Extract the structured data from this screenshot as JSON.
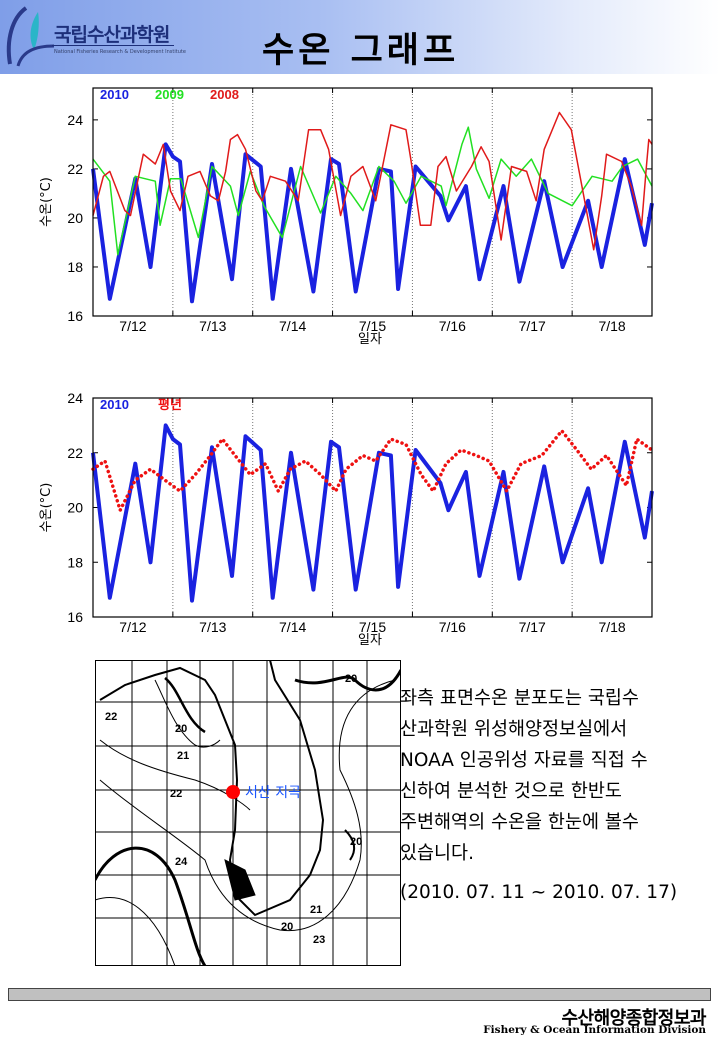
{
  "header": {
    "logo_ko": "국립수산과학원",
    "logo_en": "National Fisheries Research & Development Institute",
    "title": "수온 그래프"
  },
  "colors": {
    "y2010": "#1a22e0",
    "y2009": "#22e022",
    "y2008": "#e01a1a",
    "normal": "#ee1111",
    "station": "#ff0000",
    "station_label": "#1a55ff"
  },
  "chart_data": [
    {
      "type": "line",
      "title": "",
      "xlabel": "일자",
      "ylabel": "수온(°C)",
      "ylim": [
        16,
        25.3
      ],
      "xlim": [
        12,
        19
      ],
      "yticks": [
        16,
        18,
        20,
        22,
        24
      ],
      "xtick_labels": [
        "7/12",
        "7/13",
        "7/14",
        "7/15",
        "7/16",
        "7/17",
        "7/18"
      ],
      "legend": "top-left",
      "series": [
        {
          "name": "2010",
          "color_key": "y2010",
          "style": "thick",
          "points": [
            [
              12.0,
              22.0
            ],
            [
              12.21,
              16.7
            ],
            [
              12.53,
              21.6
            ],
            [
              12.72,
              18.0
            ],
            [
              12.91,
              23.0
            ],
            [
              13.0,
              22.5
            ],
            [
              13.09,
              22.3
            ],
            [
              13.24,
              16.6
            ],
            [
              13.49,
              22.2
            ],
            [
              13.74,
              17.5
            ],
            [
              13.91,
              22.6
            ],
            [
              14.1,
              22.1
            ],
            [
              14.25,
              16.7
            ],
            [
              14.48,
              22.0
            ],
            [
              14.76,
              17.0
            ],
            [
              14.98,
              22.4
            ],
            [
              15.08,
              22.2
            ],
            [
              15.29,
              17.0
            ],
            [
              15.58,
              22.0
            ],
            [
              15.73,
              21.9
            ],
            [
              15.82,
              17.1
            ],
            [
              16.04,
              22.1
            ],
            [
              16.35,
              20.9
            ],
            [
              16.45,
              19.9
            ],
            [
              16.67,
              21.3
            ],
            [
              16.84,
              17.5
            ],
            [
              17.14,
              21.3
            ],
            [
              17.34,
              17.4
            ],
            [
              17.65,
              21.5
            ],
            [
              17.88,
              18.0
            ],
            [
              18.2,
              20.7
            ],
            [
              18.37,
              18.0
            ],
            [
              18.66,
              22.4
            ],
            [
              18.91,
              18.9
            ],
            [
              19.0,
              20.6
            ]
          ]
        },
        {
          "name": "2009",
          "color_key": "y2009",
          "style": "thin",
          "points": [
            [
              12.0,
              22.4
            ],
            [
              12.21,
              21.5
            ],
            [
              12.31,
              18.5
            ],
            [
              12.53,
              21.7
            ],
            [
              12.78,
              21.5
            ],
            [
              12.84,
              19.7
            ],
            [
              12.97,
              21.6
            ],
            [
              13.1,
              21.6
            ],
            [
              13.32,
              19.2
            ],
            [
              13.49,
              22.1
            ],
            [
              13.72,
              21.3
            ],
            [
              13.82,
              20.1
            ],
            [
              13.97,
              21.9
            ],
            [
              14.14,
              20.5
            ],
            [
              14.37,
              19.2
            ],
            [
              14.6,
              22.1
            ],
            [
              14.85,
              20.2
            ],
            [
              15.04,
              21.7
            ],
            [
              15.23,
              21.0
            ],
            [
              15.38,
              20.3
            ],
            [
              15.58,
              22.1
            ],
            [
              15.77,
              21.5
            ],
            [
              15.92,
              20.6
            ],
            [
              16.11,
              21.7
            ],
            [
              16.36,
              21.3
            ],
            [
              16.42,
              20.5
            ],
            [
              16.62,
              23.0
            ],
            [
              16.7,
              23.7
            ],
            [
              16.8,
              22.0
            ],
            [
              16.96,
              20.8
            ],
            [
              17.11,
              22.4
            ],
            [
              17.3,
              21.7
            ],
            [
              17.49,
              22.4
            ],
            [
              17.7,
              21.0
            ],
            [
              18.0,
              20.5
            ],
            [
              18.25,
              21.7
            ],
            [
              18.5,
              21.5
            ],
            [
              18.63,
              22.1
            ],
            [
              18.82,
              22.4
            ],
            [
              19.0,
              21.3
            ]
          ]
        },
        {
          "name": "2008",
          "color_key": "y2008",
          "style": "thin",
          "points": [
            [
              12.0,
              20.1
            ],
            [
              12.13,
              21.7
            ],
            [
              12.21,
              21.9
            ],
            [
              12.4,
              20.3
            ],
            [
              12.47,
              20.1
            ],
            [
              12.63,
              22.6
            ],
            [
              12.78,
              22.2
            ],
            [
              12.88,
              23.0
            ],
            [
              12.97,
              21.1
            ],
            [
              13.09,
              20.3
            ],
            [
              13.19,
              21.7
            ],
            [
              13.34,
              21.9
            ],
            [
              13.47,
              20.9
            ],
            [
              13.57,
              20.7
            ],
            [
              13.66,
              21.9
            ],
            [
              13.72,
              23.2
            ],
            [
              13.81,
              23.4
            ],
            [
              13.91,
              22.8
            ],
            [
              14.04,
              21.1
            ],
            [
              14.12,
              20.7
            ],
            [
              14.22,
              21.7
            ],
            [
              14.41,
              21.5
            ],
            [
              14.57,
              20.7
            ],
            [
              14.7,
              23.6
            ],
            [
              14.85,
              23.6
            ],
            [
              14.95,
              22.8
            ],
            [
              15.1,
              20.1
            ],
            [
              15.23,
              21.7
            ],
            [
              15.38,
              22.1
            ],
            [
              15.54,
              20.7
            ],
            [
              15.73,
              23.8
            ],
            [
              15.92,
              23.6
            ],
            [
              15.98,
              22.4
            ],
            [
              16.1,
              19.7
            ],
            [
              16.23,
              19.7
            ],
            [
              16.32,
              22.1
            ],
            [
              16.42,
              22.5
            ],
            [
              16.55,
              21.1
            ],
            [
              16.74,
              22.1
            ],
            [
              16.86,
              22.9
            ],
            [
              16.96,
              22.3
            ],
            [
              17.11,
              19.1
            ],
            [
              17.24,
              22.1
            ],
            [
              17.43,
              21.9
            ],
            [
              17.55,
              20.7
            ],
            [
              17.65,
              22.8
            ],
            [
              17.84,
              24.3
            ],
            [
              17.99,
              23.6
            ],
            [
              18.18,
              20.3
            ],
            [
              18.27,
              18.7
            ],
            [
              18.37,
              20.9
            ],
            [
              18.43,
              22.6
            ],
            [
              18.62,
              22.3
            ],
            [
              18.74,
              21.3
            ],
            [
              18.87,
              19.7
            ],
            [
              18.93,
              22.1
            ],
            [
              18.96,
              23.2
            ],
            [
              19.0,
              23.0
            ]
          ]
        }
      ]
    },
    {
      "type": "line",
      "title": "",
      "xlabel": "일자",
      "ylabel": "수온(°C)",
      "ylim": [
        16,
        24
      ],
      "xlim": [
        12,
        19
      ],
      "yticks": [
        16,
        18,
        20,
        22,
        24
      ],
      "xtick_labels": [
        "7/12",
        "7/13",
        "7/14",
        "7/15",
        "7/16",
        "7/17",
        "7/18"
      ],
      "legend": "top-left",
      "series": [
        {
          "name": "2010",
          "color_key": "y2010",
          "style": "thick",
          "points": [
            [
              12.0,
              22.0
            ],
            [
              12.21,
              16.7
            ],
            [
              12.53,
              21.6
            ],
            [
              12.72,
              18.0
            ],
            [
              12.91,
              23.0
            ],
            [
              13.0,
              22.5
            ],
            [
              13.09,
              22.3
            ],
            [
              13.24,
              16.6
            ],
            [
              13.49,
              22.2
            ],
            [
              13.74,
              17.5
            ],
            [
              13.91,
              22.6
            ],
            [
              14.1,
              22.1
            ],
            [
              14.25,
              16.7
            ],
            [
              14.48,
              22.0
            ],
            [
              14.76,
              17.0
            ],
            [
              14.98,
              22.4
            ],
            [
              15.08,
              22.2
            ],
            [
              15.29,
              17.0
            ],
            [
              15.58,
              22.0
            ],
            [
              15.73,
              21.9
            ],
            [
              15.82,
              17.1
            ],
            [
              16.04,
              22.1
            ],
            [
              16.35,
              20.9
            ],
            [
              16.45,
              19.9
            ],
            [
              16.67,
              21.3
            ],
            [
              16.84,
              17.5
            ],
            [
              17.14,
              21.3
            ],
            [
              17.34,
              17.4
            ],
            [
              17.65,
              21.5
            ],
            [
              17.88,
              18.0
            ],
            [
              18.2,
              20.7
            ],
            [
              18.37,
              18.0
            ],
            [
              18.66,
              22.4
            ],
            [
              18.91,
              18.9
            ],
            [
              19.0,
              20.6
            ]
          ]
        },
        {
          "name": "평년",
          "color_key": "normal",
          "style": "dotted",
          "points": [
            [
              12.0,
              21.4
            ],
            [
              12.15,
              21.7
            ],
            [
              12.34,
              19.9
            ],
            [
              12.53,
              21.0
            ],
            [
              12.72,
              21.4
            ],
            [
              12.9,
              21.0
            ],
            [
              13.09,
              20.6
            ],
            [
              13.28,
              21.2
            ],
            [
              13.47,
              21.9
            ],
            [
              13.62,
              22.5
            ],
            [
              13.78,
              21.9
            ],
            [
              13.97,
              21.2
            ],
            [
              14.16,
              21.6
            ],
            [
              14.32,
              20.6
            ],
            [
              14.47,
              21.4
            ],
            [
              14.66,
              21.7
            ],
            [
              14.85,
              21.2
            ],
            [
              15.04,
              20.6
            ],
            [
              15.17,
              21.4
            ],
            [
              15.38,
              21.9
            ],
            [
              15.54,
              21.7
            ],
            [
              15.73,
              22.5
            ],
            [
              15.92,
              22.3
            ],
            [
              16.11,
              21.2
            ],
            [
              16.26,
              20.6
            ],
            [
              16.42,
              21.6
            ],
            [
              16.61,
              22.1
            ],
            [
              16.8,
              21.9
            ],
            [
              16.96,
              21.7
            ],
            [
              17.18,
              20.6
            ],
            [
              17.36,
              21.6
            ],
            [
              17.62,
              21.9
            ],
            [
              17.87,
              22.8
            ],
            [
              18.06,
              22.1
            ],
            [
              18.24,
              21.4
            ],
            [
              18.43,
              21.9
            ],
            [
              18.68,
              20.8
            ],
            [
              18.81,
              22.5
            ],
            [
              19.0,
              22.1
            ]
          ]
        }
      ]
    }
  ],
  "map": {
    "station_label": "서산 지곡",
    "contour_labels": [
      "22",
      "20",
      "21",
      "22",
      "24",
      "20",
      "20",
      "21",
      "20",
      "23"
    ]
  },
  "description": {
    "lines": [
      "좌측 표면수온 분포도는 국립수",
      "산과학원 위성해양정보실에서",
      "NOAA 인공위성 자료를 직접 수",
      "신하여 분석한 것으로  한반도",
      "주변해역의 수온을 한눈에 볼수",
      "있습니다."
    ],
    "period": "(2010. 07. 11 ~ 2010. 07. 17)"
  },
  "footer": {
    "org_ko": "수산해양종합정보과",
    "org_en": "Fishery & Ocean Information Division"
  }
}
